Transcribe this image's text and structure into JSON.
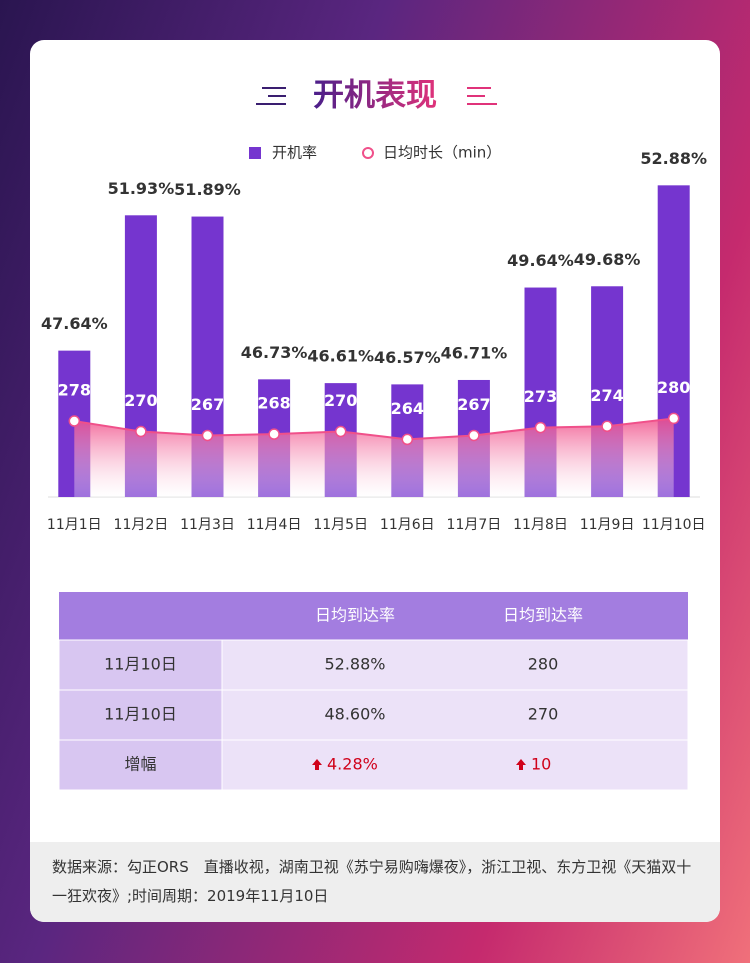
{
  "header": {
    "title": "开机表现"
  },
  "chart_data": {
    "type": "bar",
    "categories": [
      "11月1日",
      "11月2日",
      "11月3日",
      "11月4日",
      "11月5日",
      "11月6日",
      "11月7日",
      "11月8日",
      "11月9日",
      "11月10日"
    ],
    "series": [
      {
        "name": "开机率",
        "color": "#7535cf",
        "values": [
          47.64,
          51.93,
          51.89,
          46.73,
          46.61,
          46.57,
          46.71,
          49.64,
          49.68,
          52.88
        ],
        "value_labels": [
          "47.64%",
          "51.93%",
          "51.89%",
          "46.73%",
          "46.61%",
          "46.57%",
          "46.71%",
          "49.64%",
          "49.68%",
          "52.88%"
        ]
      },
      {
        "name": "日均时长（min）",
        "type": "line",
        "axis": "y2",
        "color": "#f0508a",
        "values": [
          278,
          270,
          267,
          268,
          270,
          264,
          267,
          273,
          274,
          280
        ]
      }
    ],
    "ylim": [
      43,
      54
    ],
    "y2lim": [
      220,
      485
    ],
    "grid": false,
    "legend": "top"
  },
  "table": {
    "header": [
      "日均到达率",
      "日均到达率"
    ],
    "rows": [
      {
        "label": "11月10日",
        "cells": [
          "52.88%",
          "280"
        ]
      },
      {
        "label": "11月10日",
        "cells": [
          "48.60%",
          "270"
        ]
      },
      {
        "label": "增幅",
        "cells": [
          "4.28%",
          "10"
        ]
      }
    ]
  },
  "footer": {
    "text": "数据来源：勾正ORS　直播收视，湖南卫视《苏宁易购嗨爆夜》，浙江卫视、东方卫视《天猫双十一狂欢夜》;时间周期：2019年11月10日"
  }
}
